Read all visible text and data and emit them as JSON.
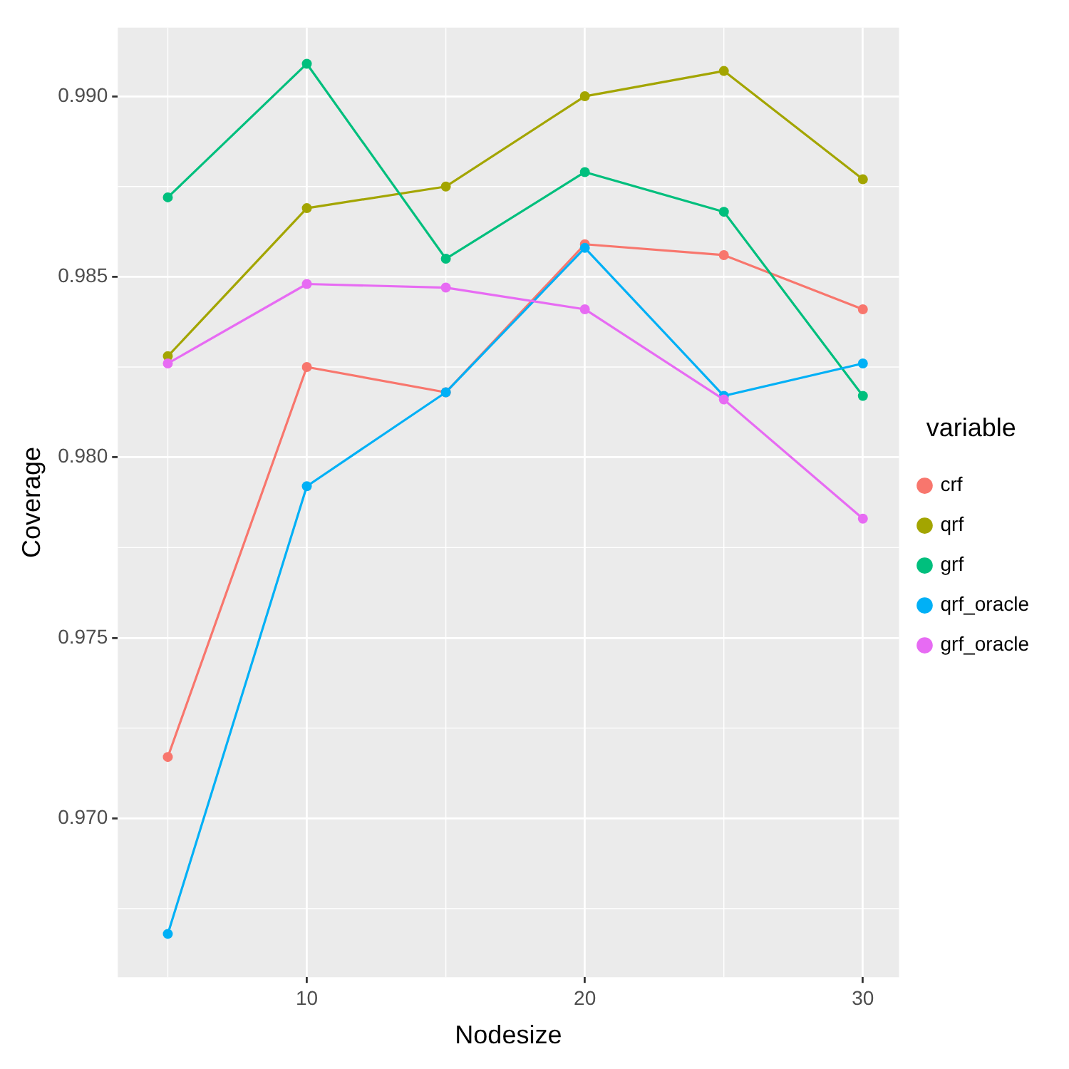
{
  "chart_data": {
    "type": "line",
    "xlabel": "Nodesize",
    "ylabel": "Coverage",
    "legend_title": "variable",
    "legend": "right",
    "grid": true,
    "marker": "circle",
    "line_style": "solid",
    "x": [
      5,
      10,
      15,
      20,
      25,
      30
    ],
    "xlim": [
      3.2,
      31.3
    ],
    "xticks": [
      10,
      20,
      30
    ],
    "ylim": [
      0.9656,
      0.9919
    ],
    "yticks": [
      {
        "value": 0.97,
        "label": "0.970"
      },
      0.975,
      {
        "value": 0.98,
        "label": "0.980"
      },
      0.985,
      {
        "value": 0.99,
        "label": "0.990"
      }
    ],
    "series": [
      {
        "name": "crf",
        "color": "#f8766d",
        "values": [
          0.9717,
          0.9825,
          0.9818,
          0.9859,
          0.9856,
          0.9841
        ]
      },
      {
        "name": "qrf",
        "color": "#a3a500",
        "values": [
          0.9828,
          0.9869,
          0.9875,
          0.99,
          0.9907,
          0.9877
        ]
      },
      {
        "name": "grf",
        "color": "#00bf7d",
        "values": [
          0.9872,
          0.9909,
          0.9855,
          0.9879,
          0.9868,
          0.9817
        ]
      },
      {
        "name": "qrf_oracle",
        "color": "#00b0f6",
        "values": [
          0.9668,
          0.9792,
          0.9818,
          0.9858,
          0.9817,
          0.9826
        ]
      },
      {
        "name": "grf_oracle",
        "color": "#e76bf3",
        "values": [
          0.9826,
          0.9848,
          0.9847,
          0.9841,
          0.9816,
          0.9783
        ]
      }
    ]
  }
}
